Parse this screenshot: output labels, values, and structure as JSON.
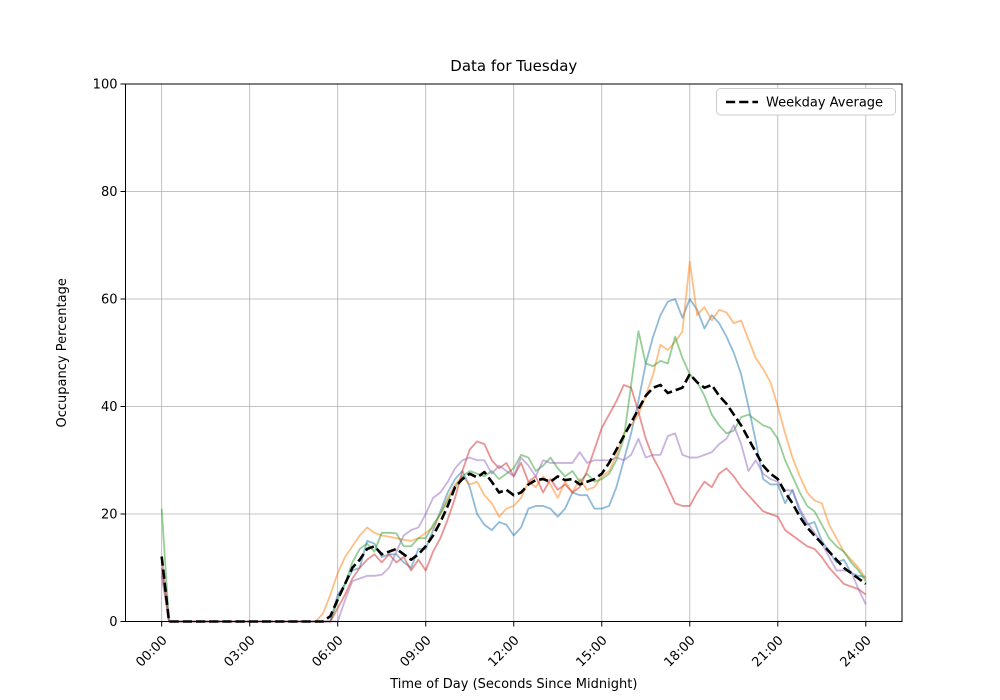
{
  "chart_data": {
    "type": "line",
    "title": "Data for Tuesday",
    "xlabel": "Time of Day (Seconds Since Midnight)",
    "ylabel": "Occupancy Percentage",
    "legend_label": "Weekday Average",
    "legend_position": "upper right",
    "grid": true,
    "grid_color": "#b0b0b0",
    "xlim": [
      -1.2333,
      25.2333
    ],
    "ylim": [
      0,
      100
    ],
    "x_step_hours": 0.25,
    "x_ticks": [
      {
        "hours": 0,
        "label": "00:00"
      },
      {
        "hours": 3,
        "label": "03:00"
      },
      {
        "hours": 6,
        "label": "06:00"
      },
      {
        "hours": 9,
        "label": "09:00"
      },
      {
        "hours": 12,
        "label": "12:00"
      },
      {
        "hours": 15,
        "label": "15:00"
      },
      {
        "hours": 18,
        "label": "18:00"
      },
      {
        "hours": 21,
        "label": "21:00"
      },
      {
        "hours": 24,
        "label": "24:00"
      }
    ],
    "y_ticks": [
      {
        "value": 0,
        "label": "0"
      },
      {
        "value": 20,
        "label": "20"
      },
      {
        "value": 40,
        "label": "40"
      },
      {
        "value": 60,
        "label": "60"
      },
      {
        "value": 80,
        "label": "80"
      },
      {
        "value": 100,
        "label": "100"
      }
    ],
    "series": [
      {
        "name": "series-1",
        "color": "#1f77b4",
        "opacity": 0.5,
        "width": 1.8,
        "dash": null,
        "in_legend": false,
        "values": [
          10,
          0,
          0,
          0,
          0,
          0,
          0,
          0,
          0,
          0,
          0,
          0,
          0,
          0,
          0,
          0,
          0,
          0,
          0,
          0,
          0,
          0,
          0,
          0,
          5,
          7,
          9.5,
          10,
          15,
          14.5,
          12,
          12.5,
          12.5,
          11,
          10,
          13.5,
          13.5,
          17,
          20.5,
          24,
          26.5,
          28,
          25,
          20,
          18,
          17,
          18.5,
          18,
          16,
          17.5,
          21,
          21.5,
          21.5,
          21,
          19.5,
          21,
          24,
          23.5,
          23.5,
          21,
          21,
          21.5,
          25,
          30,
          35,
          41,
          48,
          53,
          57,
          59.5,
          60,
          56.5,
          60,
          58,
          54.5,
          57,
          55.5,
          53,
          50,
          46,
          40,
          33.5,
          26.5,
          25.5,
          25.5,
          22,
          24.5,
          20.5,
          18,
          18.5,
          15,
          13,
          11,
          11.5,
          9,
          8.5,
          8.3
        ]
      },
      {
        "name": "series-2",
        "color": "#ff7f0e",
        "opacity": 0.5,
        "width": 1.8,
        "dash": null,
        "in_legend": false,
        "values": [
          9,
          0,
          0,
          0,
          0,
          0,
          0,
          0,
          0,
          0,
          0,
          0,
          0,
          0,
          0,
          0,
          0,
          0,
          0,
          0,
          0,
          0,
          1.5,
          5,
          9,
          12,
          14,
          16,
          17.5,
          16.5,
          16,
          15.8,
          15.5,
          15.2,
          15,
          15.5,
          16.5,
          17.5,
          20,
          23,
          25.5,
          27,
          25.5,
          26,
          23.5,
          22,
          19.5,
          21,
          21.5,
          23,
          26,
          25,
          27,
          25.5,
          23,
          26,
          24,
          26.5,
          24.5,
          25,
          27,
          28,
          31,
          35,
          36.5,
          38.5,
          42,
          46,
          51.5,
          50.5,
          52,
          54,
          67,
          57,
          58.5,
          56,
          58,
          57.5,
          55.5,
          56,
          52.5,
          49,
          47,
          44.5,
          40,
          35,
          30.5,
          27,
          24,
          22.5,
          22,
          18,
          15.5,
          13,
          11.5,
          10,
          8
        ]
      },
      {
        "name": "series-3",
        "color": "#2ca02c",
        "opacity": 0.5,
        "width": 1.8,
        "dash": null,
        "in_legend": false,
        "values": [
          21,
          0,
          0,
          0,
          0,
          0,
          0,
          0,
          0,
          0,
          0,
          0,
          0,
          0,
          0,
          0,
          0,
          0,
          0,
          0,
          0,
          0,
          0,
          0,
          4,
          7,
          11,
          13.5,
          14.5,
          13,
          16.5,
          16.5,
          16.4,
          14,
          14,
          15.5,
          15.5,
          18,
          20,
          22.5,
          25,
          27,
          28,
          27.5,
          27,
          28,
          26.5,
          27.5,
          28.5,
          31,
          30.5,
          28,
          29,
          30.5,
          28.5,
          27,
          28,
          26,
          27.5,
          26,
          26.5,
          27.5,
          30,
          34,
          44,
          54,
          48,
          47.5,
          48.5,
          48,
          53,
          49,
          46,
          44.5,
          42,
          38.5,
          36.5,
          35,
          35.5,
          38,
          38.5,
          37.5,
          36.5,
          36,
          34,
          30,
          27,
          24,
          21.5,
          20.5,
          18,
          15.5,
          14,
          13,
          11,
          9.5,
          7.5
        ]
      },
      {
        "name": "series-4",
        "color": "#d62728",
        "opacity": 0.5,
        "width": 1.8,
        "dash": null,
        "in_legend": false,
        "values": [
          12,
          0,
          0,
          0,
          0,
          0,
          0,
          0,
          0,
          0,
          0,
          0,
          0,
          0,
          0,
          0,
          0,
          0,
          0,
          0,
          0,
          0,
          0,
          0,
          2.5,
          5,
          8,
          10,
          11.5,
          12.5,
          11,
          12.5,
          11,
          12,
          9.5,
          11.5,
          9.5,
          13,
          15.5,
          19,
          23,
          28,
          32,
          33.5,
          33,
          30,
          28.5,
          29.5,
          27,
          29.5,
          26,
          27,
          24,
          26.5,
          24.5,
          25.5,
          24,
          25,
          28,
          32,
          36,
          38.5,
          41,
          44,
          43.5,
          39,
          34,
          30.5,
          28,
          25,
          22,
          21.5,
          21.5,
          24,
          26,
          25,
          27.5,
          28.5,
          27,
          25,
          23.5,
          22,
          20.5,
          20,
          19.5,
          17,
          16,
          15,
          14,
          13.5,
          12,
          10,
          8.5,
          7,
          6.5,
          6,
          5
        ]
      },
      {
        "name": "series-5",
        "color": "#9467bd",
        "opacity": 0.5,
        "width": 1.8,
        "dash": null,
        "in_legend": false,
        "values": [
          8.5,
          0,
          0,
          0,
          0,
          0,
          0,
          0,
          0,
          0,
          0,
          0,
          0,
          0,
          0,
          0,
          0,
          0,
          0,
          0,
          0,
          0,
          0,
          0,
          0,
          4,
          7.5,
          8,
          8.5,
          8.5,
          8.7,
          10,
          13,
          16,
          17,
          17.5,
          20,
          23,
          24,
          26,
          28.5,
          30,
          30.5,
          30,
          30,
          27.5,
          29,
          28,
          27,
          30.5,
          29,
          27,
          30,
          29.5,
          29.5,
          29.5,
          29.5,
          31.5,
          29.5,
          30,
          30,
          30,
          30.5,
          30,
          31,
          34,
          30.5,
          31,
          31,
          34.5,
          35,
          31,
          30.5,
          30.5,
          31,
          31.5,
          33,
          34,
          36.5,
          33,
          28,
          30,
          27.5,
          26.5,
          26,
          24.5,
          24.3,
          21,
          18.5,
          16.5,
          14.5,
          12,
          9.5,
          9.5,
          9.3,
          6,
          3.2
        ]
      },
      {
        "name": "Weekday Average",
        "color": "#000000",
        "opacity": 1,
        "width": 2.6,
        "dash": [
          9.2,
          4
        ],
        "in_legend": true,
        "values": [
          12.1,
          0,
          0,
          0,
          0,
          0,
          0,
          0,
          0,
          0,
          0,
          0,
          0,
          0,
          0,
          0,
          0,
          0,
          0,
          0,
          0,
          0,
          0,
          1,
          4.1,
          7,
          10,
          11.5,
          13.5,
          14,
          12.5,
          13,
          13.5,
          12.5,
          11.5,
          12.5,
          14,
          16,
          18.5,
          21.5,
          25,
          26.5,
          27.5,
          26.8,
          27.8,
          26,
          24,
          24.5,
          23.5,
          24,
          25.5,
          26.3,
          26.5,
          26,
          27,
          26.3,
          26.5,
          25.5,
          26,
          26.5,
          27.5,
          29.5,
          32,
          34.5,
          37,
          39.5,
          42,
          43.5,
          44,
          42.5,
          43,
          43.5,
          46,
          44.5,
          43.5,
          44,
          42,
          40.5,
          38.5,
          36.5,
          34,
          31.5,
          29,
          27.5,
          26.5,
          24,
          22,
          19.5,
          17.5,
          16,
          14.5,
          13,
          11.5,
          10,
          9,
          8,
          7
        ]
      }
    ]
  }
}
